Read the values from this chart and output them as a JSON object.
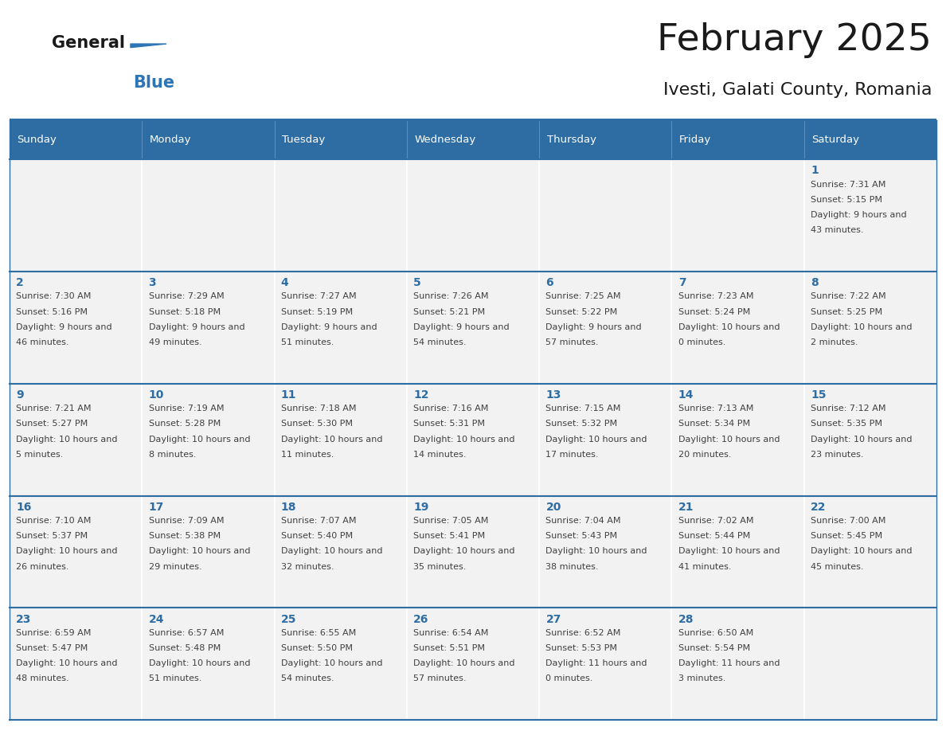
{
  "title": "February 2025",
  "subtitle": "Ivesti, Galati County, Romania",
  "days_of_week": [
    "Sunday",
    "Monday",
    "Tuesday",
    "Wednesday",
    "Thursday",
    "Friday",
    "Saturday"
  ],
  "header_bg": "#2e6da4",
  "header_text": "#ffffff",
  "cell_bg": "#f2f2f2",
  "border_color": "#2e6da4",
  "row_line_color": "#2e6da4",
  "text_color": "#404040",
  "day_number_color": "#2e6da4",
  "logo_general_color": "#1a1a1a",
  "logo_blue_color": "#2e75b6",
  "calendar_data": {
    "1": {
      "sunrise": "7:31 AM",
      "sunset": "5:15 PM",
      "daylight": "9 hours and 43 minutes."
    },
    "2": {
      "sunrise": "7:30 AM",
      "sunset": "5:16 PM",
      "daylight": "9 hours and 46 minutes."
    },
    "3": {
      "sunrise": "7:29 AM",
      "sunset": "5:18 PM",
      "daylight": "9 hours and 49 minutes."
    },
    "4": {
      "sunrise": "7:27 AM",
      "sunset": "5:19 PM",
      "daylight": "9 hours and 51 minutes."
    },
    "5": {
      "sunrise": "7:26 AM",
      "sunset": "5:21 PM",
      "daylight": "9 hours and 54 minutes."
    },
    "6": {
      "sunrise": "7:25 AM",
      "sunset": "5:22 PM",
      "daylight": "9 hours and 57 minutes."
    },
    "7": {
      "sunrise": "7:23 AM",
      "sunset": "5:24 PM",
      "daylight": "10 hours and 0 minutes."
    },
    "8": {
      "sunrise": "7:22 AM",
      "sunset": "5:25 PM",
      "daylight": "10 hours and 2 minutes."
    },
    "9": {
      "sunrise": "7:21 AM",
      "sunset": "5:27 PM",
      "daylight": "10 hours and 5 minutes."
    },
    "10": {
      "sunrise": "7:19 AM",
      "sunset": "5:28 PM",
      "daylight": "10 hours and 8 minutes."
    },
    "11": {
      "sunrise": "7:18 AM",
      "sunset": "5:30 PM",
      "daylight": "10 hours and 11 minutes."
    },
    "12": {
      "sunrise": "7:16 AM",
      "sunset": "5:31 PM",
      "daylight": "10 hours and 14 minutes."
    },
    "13": {
      "sunrise": "7:15 AM",
      "sunset": "5:32 PM",
      "daylight": "10 hours and 17 minutes."
    },
    "14": {
      "sunrise": "7:13 AM",
      "sunset": "5:34 PM",
      "daylight": "10 hours and 20 minutes."
    },
    "15": {
      "sunrise": "7:12 AM",
      "sunset": "5:35 PM",
      "daylight": "10 hours and 23 minutes."
    },
    "16": {
      "sunrise": "7:10 AM",
      "sunset": "5:37 PM",
      "daylight": "10 hours and 26 minutes."
    },
    "17": {
      "sunrise": "7:09 AM",
      "sunset": "5:38 PM",
      "daylight": "10 hours and 29 minutes."
    },
    "18": {
      "sunrise": "7:07 AM",
      "sunset": "5:40 PM",
      "daylight": "10 hours and 32 minutes."
    },
    "19": {
      "sunrise": "7:05 AM",
      "sunset": "5:41 PM",
      "daylight": "10 hours and 35 minutes."
    },
    "20": {
      "sunrise": "7:04 AM",
      "sunset": "5:43 PM",
      "daylight": "10 hours and 38 minutes."
    },
    "21": {
      "sunrise": "7:02 AM",
      "sunset": "5:44 PM",
      "daylight": "10 hours and 41 minutes."
    },
    "22": {
      "sunrise": "7:00 AM",
      "sunset": "5:45 PM",
      "daylight": "10 hours and 45 minutes."
    },
    "23": {
      "sunrise": "6:59 AM",
      "sunset": "5:47 PM",
      "daylight": "10 hours and 48 minutes."
    },
    "24": {
      "sunrise": "6:57 AM",
      "sunset": "5:48 PM",
      "daylight": "10 hours and 51 minutes."
    },
    "25": {
      "sunrise": "6:55 AM",
      "sunset": "5:50 PM",
      "daylight": "10 hours and 54 minutes."
    },
    "26": {
      "sunrise": "6:54 AM",
      "sunset": "5:51 PM",
      "daylight": "10 hours and 57 minutes."
    },
    "27": {
      "sunrise": "6:52 AM",
      "sunset": "5:53 PM",
      "daylight": "11 hours and 0 minutes."
    },
    "28": {
      "sunrise": "6:50 AM",
      "sunset": "5:54 PM",
      "daylight": "11 hours and 3 minutes."
    }
  },
  "weeks": [
    [
      null,
      null,
      null,
      null,
      null,
      null,
      1
    ],
    [
      2,
      3,
      4,
      5,
      6,
      7,
      8
    ],
    [
      9,
      10,
      11,
      12,
      13,
      14,
      15
    ],
    [
      16,
      17,
      18,
      19,
      20,
      21,
      22
    ],
    [
      23,
      24,
      25,
      26,
      27,
      28,
      null
    ]
  ]
}
